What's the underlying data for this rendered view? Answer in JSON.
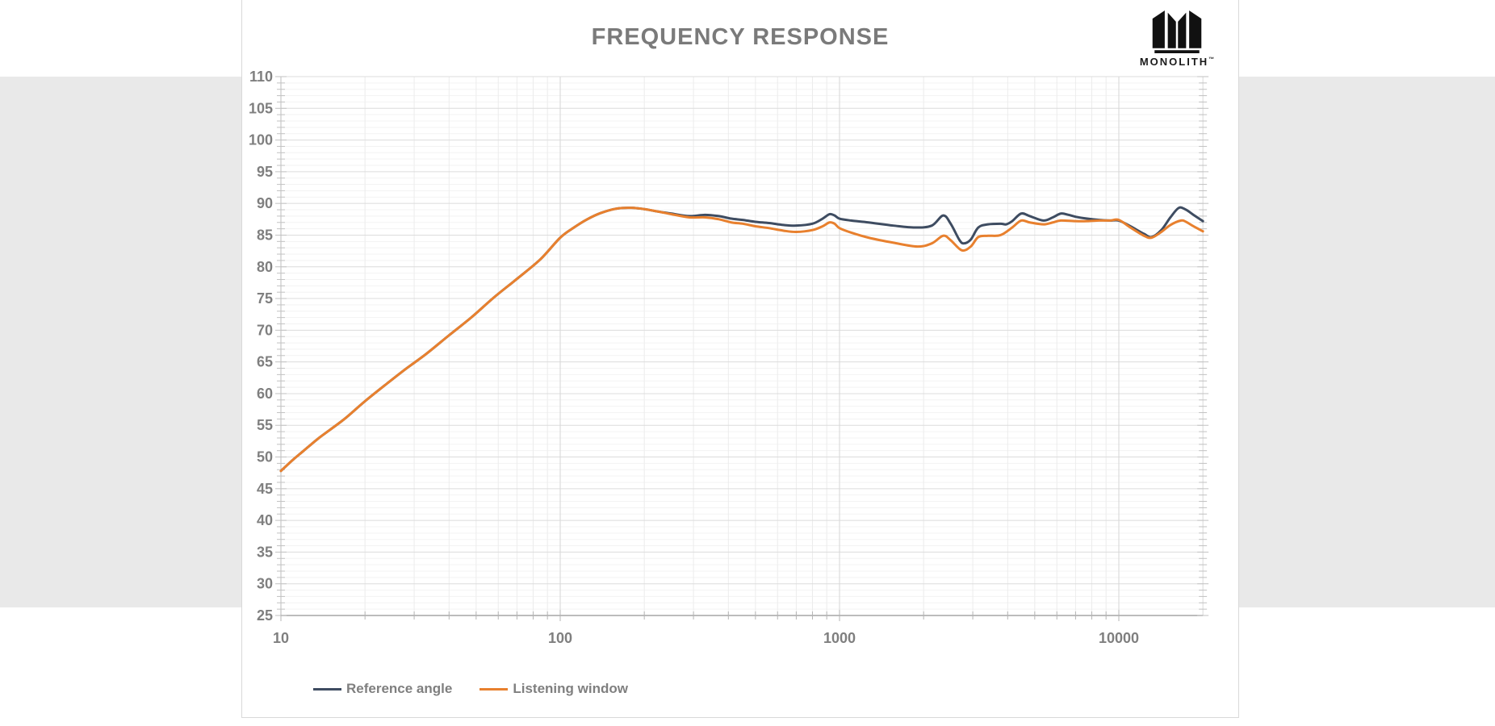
{
  "page": {
    "title": "FREQUENCY RESPONSE",
    "brand": {
      "name": "MONOLITH",
      "tm": "™"
    },
    "background_band_color": "#e9e9e9",
    "card_background": "#ffffff"
  },
  "chart_data": {
    "type": "line",
    "title": "FREQUENCY RESPONSE",
    "xlabel": "",
    "ylabel": "",
    "grid": "on",
    "legend_position": "bottom-left",
    "x_axis": {
      "scale": "log",
      "min": 10,
      "max": 20000,
      "tick_values": [
        10,
        100,
        1000,
        10000
      ],
      "tick_labels": [
        "10",
        "100",
        "1000",
        "10000"
      ]
    },
    "y_axis": {
      "min": 25,
      "max": 110,
      "major_step": 5,
      "minor_step": 1,
      "tick_values": [
        110,
        105,
        100,
        95,
        90,
        85,
        80,
        75,
        70,
        65,
        60,
        55,
        50,
        45,
        40,
        35,
        30,
        25
      ],
      "tick_labels": [
        "110",
        "105",
        "100",
        "95",
        "90",
        "85",
        "80",
        "75",
        "70",
        "65",
        "60",
        "55",
        "50",
        "45",
        "40",
        "35",
        "30",
        "25"
      ]
    },
    "series": [
      {
        "name": "Reference angle",
        "color": "#3e4c61",
        "points": [
          [
            10,
            47.8
          ],
          [
            11,
            49.5
          ],
          [
            12,
            50.9
          ],
          [
            13.5,
            52.8
          ],
          [
            15,
            54.3
          ],
          [
            17,
            56.1
          ],
          [
            20,
            58.8
          ],
          [
            24,
            61.6
          ],
          [
            28,
            63.9
          ],
          [
            33,
            66.2
          ],
          [
            40,
            69.2
          ],
          [
            48,
            72.0
          ],
          [
            58,
            75.2
          ],
          [
            70,
            78.1
          ],
          [
            85,
            81.2
          ],
          [
            100,
            84.6
          ],
          [
            112,
            86.2
          ],
          [
            125,
            87.5
          ],
          [
            140,
            88.5
          ],
          [
            160,
            89.2
          ],
          [
            180,
            89.3
          ],
          [
            200,
            89.1
          ],
          [
            225,
            88.7
          ],
          [
            250,
            88.4
          ],
          [
            290,
            88.0
          ],
          [
            330,
            88.2
          ],
          [
            370,
            88.0
          ],
          [
            410,
            87.6
          ],
          [
            450,
            87.4
          ],
          [
            500,
            87.1
          ],
          [
            560,
            86.9
          ],
          [
            630,
            86.6
          ],
          [
            700,
            86.5
          ],
          [
            800,
            86.8
          ],
          [
            870,
            87.6
          ],
          [
            920,
            88.3
          ],
          [
            960,
            88.1
          ],
          [
            1000,
            87.6
          ],
          [
            1100,
            87.3
          ],
          [
            1270,
            87.0
          ],
          [
            1560,
            86.5
          ],
          [
            1860,
            86.2
          ],
          [
            2140,
            86.5
          ],
          [
            2350,
            88.1
          ],
          [
            2500,
            86.8
          ],
          [
            2690,
            84.2
          ],
          [
            2790,
            83.7
          ],
          [
            2950,
            84.3
          ],
          [
            3140,
            86.2
          ],
          [
            3400,
            86.7
          ],
          [
            3770,
            86.8
          ],
          [
            3950,
            86.7
          ],
          [
            4150,
            87.2
          ],
          [
            4470,
            88.4
          ],
          [
            4800,
            88.0
          ],
          [
            5370,
            87.3
          ],
          [
            5800,
            87.8
          ],
          [
            6200,
            88.4
          ],
          [
            6600,
            88.2
          ],
          [
            7000,
            87.9
          ],
          [
            7700,
            87.6
          ],
          [
            8500,
            87.4
          ],
          [
            9300,
            87.3
          ],
          [
            10000,
            87.3
          ],
          [
            11000,
            86.4
          ],
          [
            12300,
            85.2
          ],
          [
            13100,
            84.7
          ],
          [
            14200,
            85.8
          ],
          [
            15300,
            87.8
          ],
          [
            16400,
            89.3
          ],
          [
            17400,
            89.0
          ],
          [
            18500,
            88.2
          ],
          [
            20000,
            87.2
          ]
        ]
      },
      {
        "name": "Listening window",
        "color": "#e8802e",
        "points": [
          [
            10,
            47.8
          ],
          [
            11,
            49.5
          ],
          [
            12,
            50.9
          ],
          [
            13.5,
            52.8
          ],
          [
            15,
            54.3
          ],
          [
            17,
            56.1
          ],
          [
            20,
            58.8
          ],
          [
            24,
            61.6
          ],
          [
            28,
            63.9
          ],
          [
            33,
            66.2
          ],
          [
            40,
            69.2
          ],
          [
            48,
            72.0
          ],
          [
            58,
            75.2
          ],
          [
            70,
            78.1
          ],
          [
            85,
            81.2
          ],
          [
            100,
            84.6
          ],
          [
            112,
            86.2
          ],
          [
            125,
            87.5
          ],
          [
            140,
            88.5
          ],
          [
            160,
            89.2
          ],
          [
            180,
            89.3
          ],
          [
            200,
            89.1
          ],
          [
            225,
            88.7
          ],
          [
            250,
            88.3
          ],
          [
            290,
            87.8
          ],
          [
            330,
            87.8
          ],
          [
            370,
            87.5
          ],
          [
            410,
            87.0
          ],
          [
            450,
            86.8
          ],
          [
            500,
            86.4
          ],
          [
            560,
            86.1
          ],
          [
            630,
            85.7
          ],
          [
            700,
            85.5
          ],
          [
            800,
            85.8
          ],
          [
            870,
            86.4
          ],
          [
            920,
            87.0
          ],
          [
            960,
            86.8
          ],
          [
            1000,
            86.1
          ],
          [
            1100,
            85.4
          ],
          [
            1270,
            84.6
          ],
          [
            1560,
            83.8
          ],
          [
            1900,
            83.2
          ],
          [
            2140,
            83.7
          ],
          [
            2350,
            84.9
          ],
          [
            2500,
            84.2
          ],
          [
            2740,
            82.6
          ],
          [
            2950,
            83.2
          ],
          [
            3140,
            84.7
          ],
          [
            3400,
            84.9
          ],
          [
            3770,
            85.0
          ],
          [
            4150,
            86.2
          ],
          [
            4470,
            87.3
          ],
          [
            4800,
            87.0
          ],
          [
            5370,
            86.7
          ],
          [
            5800,
            87.0
          ],
          [
            6200,
            87.3
          ],
          [
            7000,
            87.2
          ],
          [
            7700,
            87.2
          ],
          [
            8500,
            87.3
          ],
          [
            9300,
            87.3
          ],
          [
            10000,
            87.4
          ],
          [
            11000,
            86.2
          ],
          [
            12300,
            84.9
          ],
          [
            13100,
            84.6
          ],
          [
            14200,
            85.5
          ],
          [
            15300,
            86.6
          ],
          [
            16700,
            87.3
          ],
          [
            17400,
            87.1
          ],
          [
            18500,
            86.4
          ],
          [
            20000,
            85.6
          ]
        ]
      }
    ]
  }
}
